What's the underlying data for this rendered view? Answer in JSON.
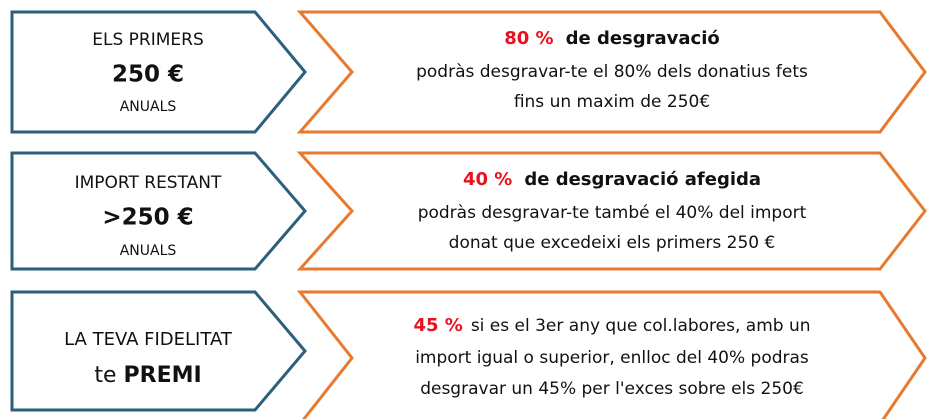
{
  "rows": [
    {
      "left": {
        "line1": "ELS PRIMERS",
        "line2": "250 €",
        "line3": "ANUALS"
      },
      "right": {
        "highlight": "80 %",
        "heading": "de desgravació",
        "lines": [
          "podràs desgravar-te el 80% dels donatius fets",
          "fins un maxim de 250€"
        ]
      }
    },
    {
      "left": {
        "line1": "IMPORT RESTANT",
        "line2": ">250 €",
        "line3": "ANUALS"
      },
      "right": {
        "highlight": "40 %",
        "heading": "de desgravació afegida",
        "lines": [
          "podràs desgravar-te també el 40% del import",
          "donat que excedeixi els primers 250 €"
        ]
      }
    },
    {
      "left": {
        "line1": "LA TEVA FIDELITAT",
        "line2a": "te",
        "line2b": "PREMI"
      },
      "right": {
        "highlight": "45 %",
        "text": "si es el 3er any que col.labores, amb un",
        "lines": [
          "import igual o superior, enlloc del 40% podras",
          "desgravar un 45% per l'exces sobre els 250€"
        ]
      }
    }
  ]
}
